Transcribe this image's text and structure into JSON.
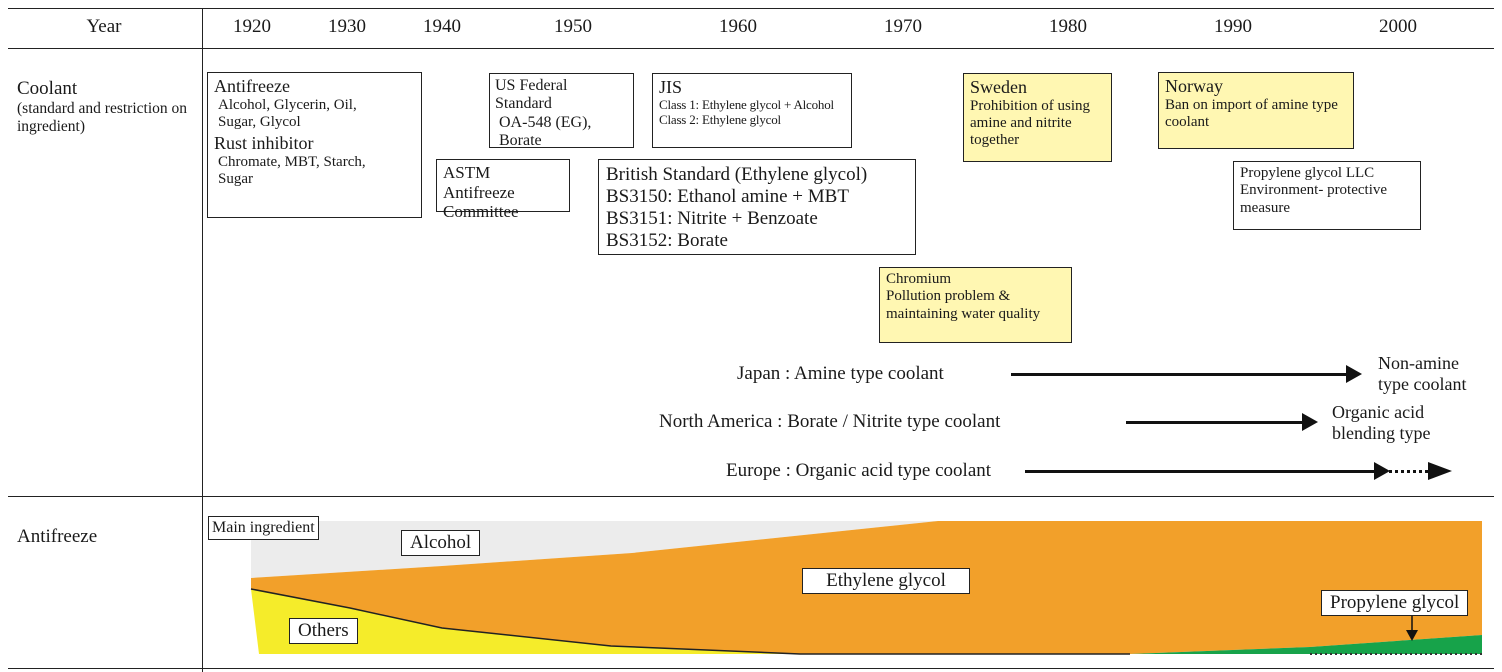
{
  "header": {
    "year_label": "Year",
    "years": [
      "1920",
      "1930",
      "1940",
      "1950",
      "1960",
      "1970",
      "1980",
      "1990",
      "2000"
    ]
  },
  "coolant_row": {
    "label_main": "Coolant",
    "label_sub_1": "(standard and restriction on",
    "label_sub_2": "ingredient)"
  },
  "boxes": {
    "antifreeze_rust": {
      "title1": "Antifreeze",
      "line1": "Alcohol, Glycerin, Oil,",
      "line2": "Sugar, Glycol",
      "title2": "Rust inhibitor",
      "line3": "Chromate, MBT, Starch,",
      "line4": "Sugar"
    },
    "us_federal": {
      "line1": "US Federal Standard",
      "line2": "OA-548 (EG),",
      "line3": "Borate"
    },
    "jis": {
      "title": "JIS",
      "line1": "Class 1: Ethylene glycol + Alcohol",
      "line2": "Class 2: Ethylene glycol"
    },
    "astm": {
      "line1": "ASTM Antifreeze",
      "line2": "Committee"
    },
    "british": {
      "line1": "British Standard (Ethylene glycol)",
      "line2": "BS3150: Ethanol amine + MBT",
      "line3": "BS3151: Nitrite + Benzoate",
      "line4": "BS3152: Borate"
    },
    "sweden": {
      "title": "Sweden",
      "line1": "Prohibition of using",
      "line2": "amine and nitrite",
      "line3": "together"
    },
    "norway": {
      "title": "Norway",
      "line1": "Ban on import of amine type",
      "line2": "coolant"
    },
    "propylene_llc": {
      "line1": "Propylene glycol LLC",
      "line2": "Environment- protective",
      "line3": "measure"
    },
    "chromium": {
      "line1": "Chromium",
      "line2": "Pollution problem &",
      "line3": "maintaining water quality"
    }
  },
  "trends": {
    "japan": {
      "label": "Japan : Amine type coolant",
      "end_1": "Non-amine",
      "end_2": "type coolant"
    },
    "north_america": {
      "label": "North America : Borate / Nitrite type coolant",
      "end_1": "Organic acid",
      "end_2": "blending type"
    },
    "europe": {
      "label": "Europe : Organic acid type coolant"
    }
  },
  "antifreeze_row": {
    "label": "Antifreeze",
    "main_ingredient": "Main ingredient",
    "alcohol": "Alcohol",
    "ethylene_glycol": "Ethylene glycol",
    "others": "Others",
    "propylene_glycol": "Propylene glycol"
  },
  "colors": {
    "alcohol": "#ececec",
    "ethylene_glycol": "#f2a02a",
    "others": "#f5ec2a",
    "propylene_glycol": "#17a34a",
    "highlight_box": "#fff7b2"
  }
}
